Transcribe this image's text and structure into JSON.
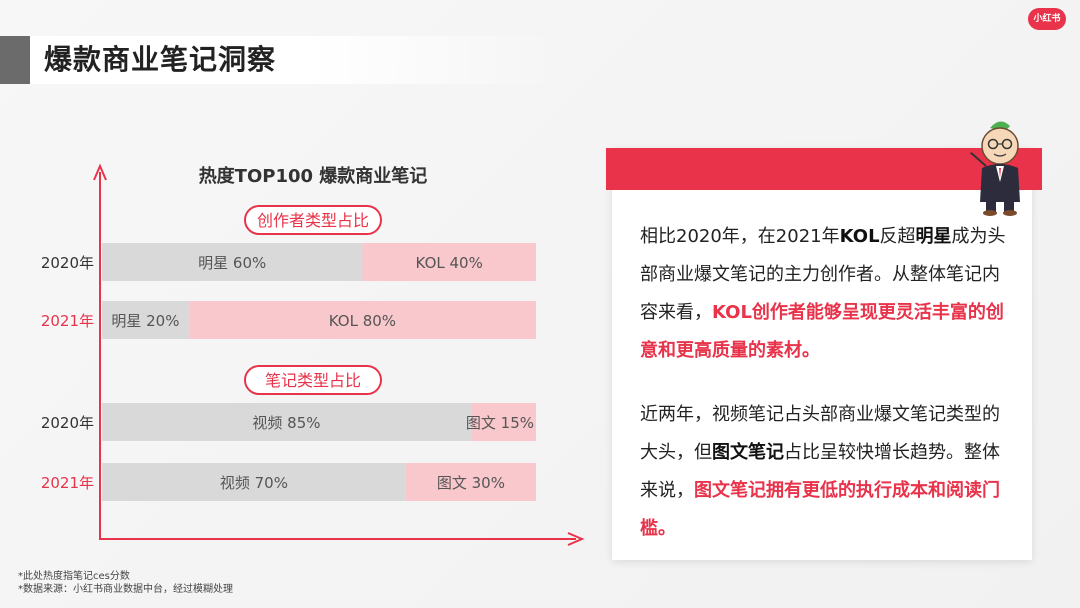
{
  "logo": {
    "text": "小红书"
  },
  "page_title": "爆款商业笔记洞察",
  "chart_data": {
    "type": "bar",
    "stacked": true,
    "orientation": "horizontal",
    "title": "热度TOP100 爆款商业笔记",
    "xlim": [
      0,
      100
    ],
    "groups": [
      {
        "label": "创作者类型占比",
        "rows": [
          {
            "year": "2020年",
            "segments": [
              {
                "name": "明星",
                "value": 60,
                "label": "明星 60%"
              },
              {
                "name": "KOL",
                "value": 40,
                "label": "KOL 40%"
              }
            ]
          },
          {
            "year": "2021年",
            "segments": [
              {
                "name": "明星",
                "value": 20,
                "label": "明星 20%"
              },
              {
                "name": "KOL",
                "value": 80,
                "label": "KOL 80%"
              }
            ]
          }
        ]
      },
      {
        "label": "笔记类型占比",
        "rows": [
          {
            "year": "2020年",
            "segments": [
              {
                "name": "视频",
                "value": 85,
                "label": "视频 85%"
              },
              {
                "name": "图文",
                "value": 15,
                "label": "图文 15%"
              }
            ]
          },
          {
            "year": "2021年",
            "segments": [
              {
                "name": "视频",
                "value": 70,
                "label": "视频 70%"
              },
              {
                "name": "图文",
                "value": 30,
                "label": "图文 30%"
              }
            ]
          }
        ]
      }
    ],
    "colors": {
      "first": "#d9d9d9",
      "second": "#f9c8cc",
      "axis": "#e8334a",
      "year_2021": "#e8334a",
      "year_2020": "#333333"
    }
  },
  "footnotes": [
    "*此处热度指笔记ces分数",
    "*数据来源：小红书商业数据中台，经过模糊处理"
  ],
  "card": {
    "p1": {
      "t1": "相比2020年，在2021年",
      "b1": "KOL",
      "t2": "反超",
      "b2": "明星",
      "t3": "成为头部商业爆文笔记的主力创作者。从整体笔记内容来看，",
      "h1": "KOL创作者能够呈现更灵活丰富的创意和更高质量的素材。"
    },
    "p2": {
      "t1": "近两年，视频笔记占头部商业爆文笔记类型的大头，但",
      "b1": "图文笔记",
      "t2": "占比呈较快增长趋势。整体来说，",
      "h1": "图文笔记拥有更低的执行成本和阅读门槛。"
    }
  }
}
